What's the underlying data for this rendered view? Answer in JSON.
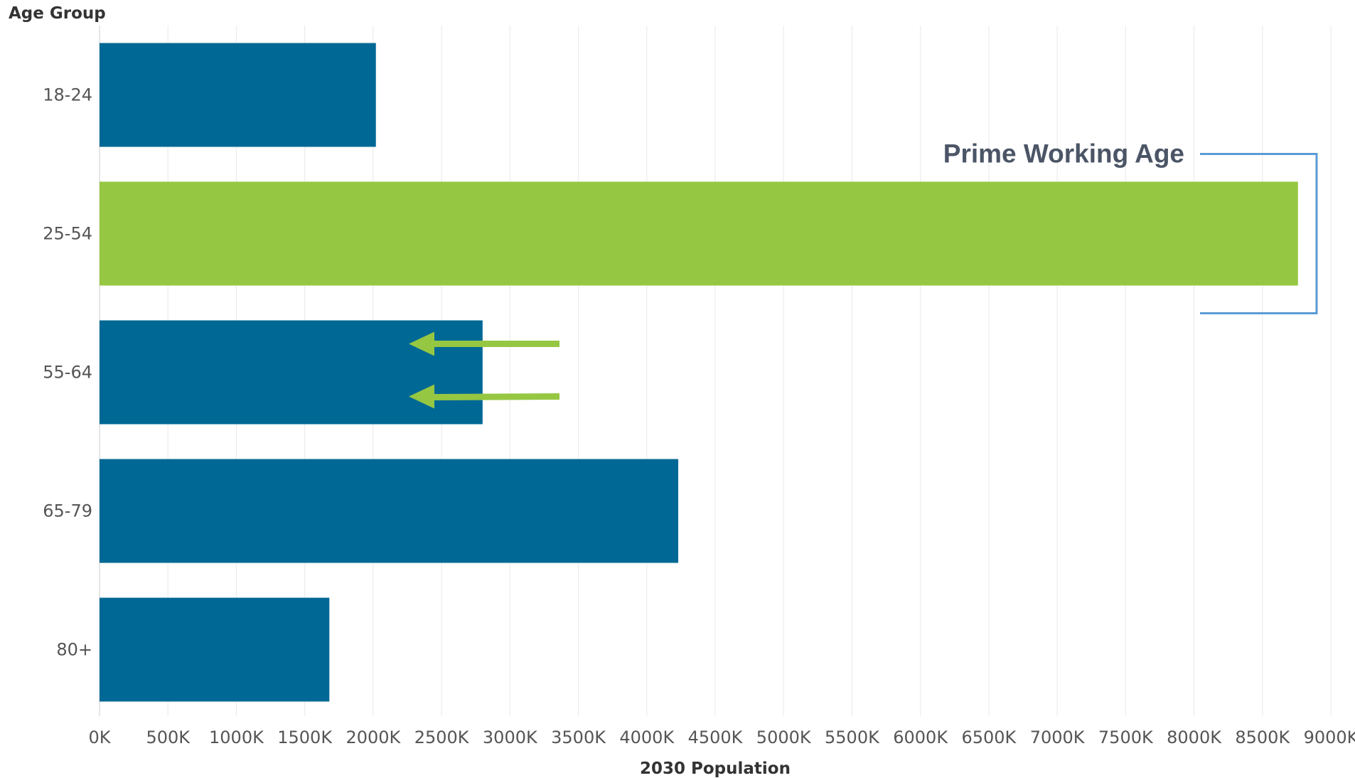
{
  "chart_data": {
    "type": "bar",
    "orientation": "horizontal",
    "categories": [
      "18-24",
      "25-54",
      "55-64",
      "65-79",
      "80+"
    ],
    "values": [
      2020000,
      8760000,
      2800000,
      4230000,
      1680000
    ],
    "ylabel": "Age Group",
    "xlabel": "2030 Population",
    "xlim": [
      0,
      9000000
    ],
    "xticks": [
      0,
      500000,
      1000000,
      1500000,
      2000000,
      2500000,
      3000000,
      3500000,
      4000000,
      4500000,
      5000000,
      5500000,
      6000000,
      6500000,
      7000000,
      7500000,
      8000000,
      8500000,
      9000000
    ],
    "xtick_labels": [
      "0K",
      "500K",
      "1000K",
      "1500K",
      "2000K",
      "2500K",
      "3000K",
      "3500K",
      "4000K",
      "4500K",
      "5000K",
      "5500K",
      "6000K",
      "6500K",
      "7000K",
      "7500K",
      "8000K",
      "8500K",
      "9000K"
    ],
    "grid": "vertical",
    "colors": {
      "default": "#006895",
      "highlight": "#96c742",
      "annotation_line": "#5b9bd5",
      "arrow": "#96c742"
    },
    "highlight_category": "25-54",
    "annotations": [
      {
        "type": "bracket",
        "text": "Prime Working Age",
        "target": "25-54",
        "side": "right"
      },
      {
        "type": "arrow",
        "target": "55-64",
        "direction": "left",
        "count": 2
      }
    ]
  }
}
